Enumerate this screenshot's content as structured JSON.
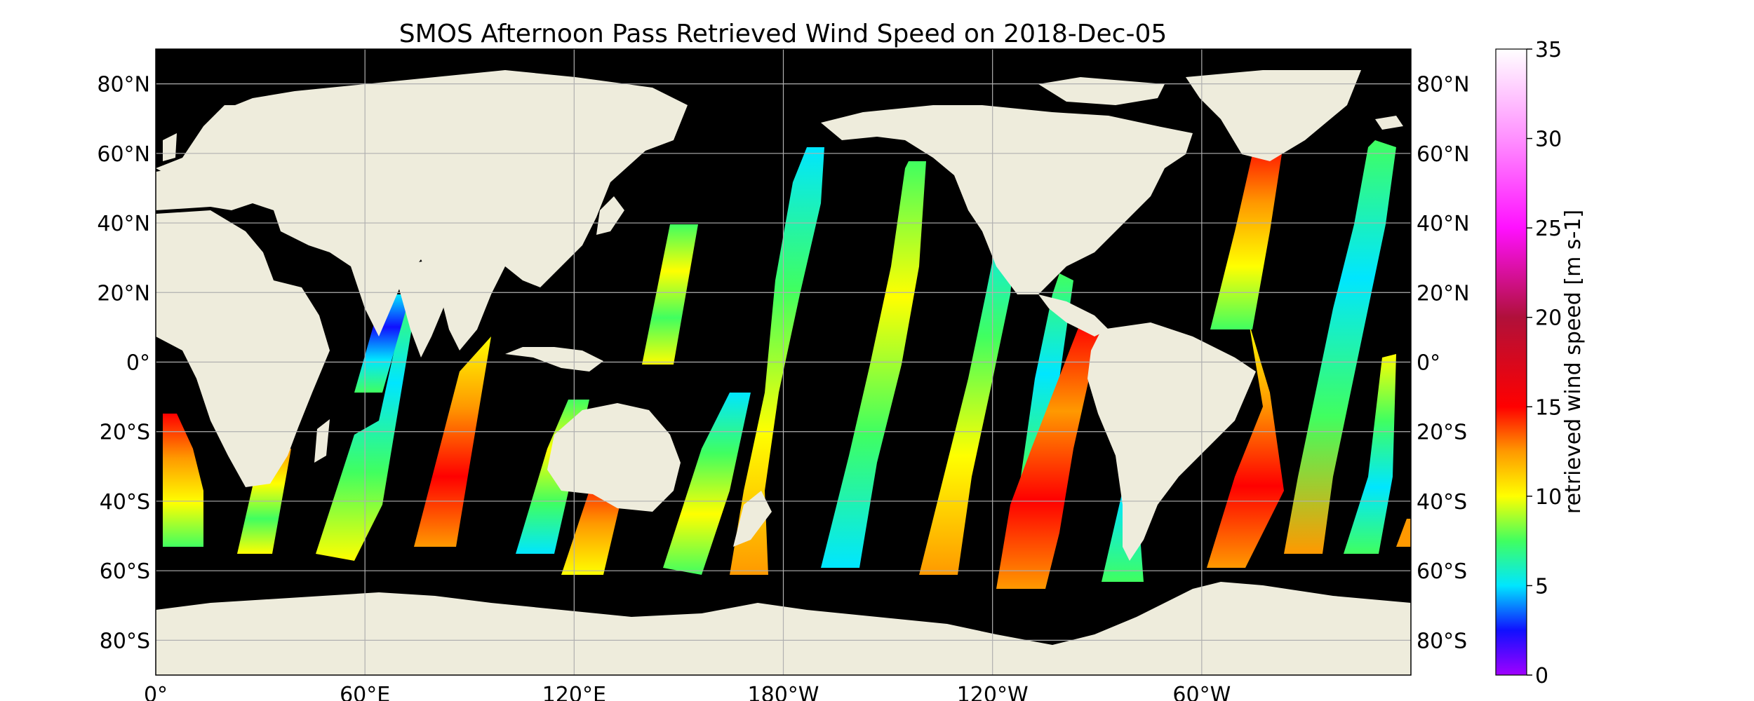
{
  "title": "SMOS Afternoon Pass Retrieved Wind Speed on 2018-Dec-05",
  "map": {
    "projection": "PlateCarree",
    "central_longitude": 180,
    "lon_range": [
      0,
      360
    ],
    "lat_range": [
      -90,
      90
    ],
    "ocean_color": "#000000",
    "land_color": "#eeecdc",
    "gridlines": true,
    "lat_ticks": [
      {
        "value": 80,
        "label": "80°N"
      },
      {
        "value": 60,
        "label": "60°N"
      },
      {
        "value": 40,
        "label": "40°N"
      },
      {
        "value": 20,
        "label": "20°N"
      },
      {
        "value": 0,
        "label": "0°"
      },
      {
        "value": -20,
        "label": "20°S"
      },
      {
        "value": -40,
        "label": "40°S"
      },
      {
        "value": -60,
        "label": "60°S"
      },
      {
        "value": -80,
        "label": "80°S"
      }
    ],
    "lon_ticks": [
      {
        "value": 0,
        "label": "0°"
      },
      {
        "value": 60,
        "label": "60°E"
      },
      {
        "value": 120,
        "label": "120°E"
      },
      {
        "value": 180,
        "label": "180°W"
      },
      {
        "value": 240,
        "label": "120°W"
      },
      {
        "value": 300,
        "label": "60°W"
      }
    ]
  },
  "colorbar": {
    "label": "retrieved wind speed [m s-1]",
    "min": 0,
    "max": 35,
    "ticks": [
      0,
      5,
      10,
      15,
      20,
      25,
      30,
      35
    ],
    "colors": [
      {
        "v": 0,
        "c": "#a000ff"
      },
      {
        "v": 2.5,
        "c": "#1010ff"
      },
      {
        "v": 5,
        "c": "#00e6ff"
      },
      {
        "v": 7.5,
        "c": "#40ff60"
      },
      {
        "v": 10,
        "c": "#ffff00"
      },
      {
        "v": 12.5,
        "c": "#ff9900"
      },
      {
        "v": 15,
        "c": "#ff0000"
      },
      {
        "v": 20,
        "c": "#b0103a"
      },
      {
        "v": 25,
        "c": "#ff10ff"
      },
      {
        "v": 30,
        "c": "#ff90ff"
      },
      {
        "v": 35,
        "c": "#ffffff"
      }
    ]
  }
}
